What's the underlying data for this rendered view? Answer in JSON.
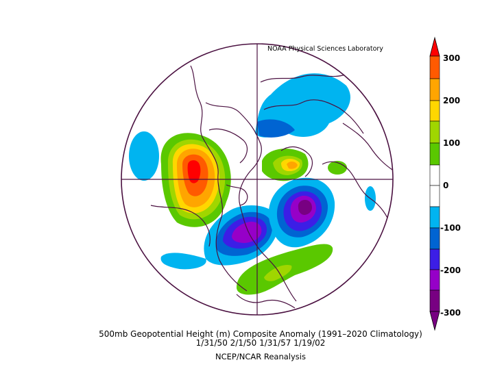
{
  "credit": "NOAA Physical Sciences Laboratory",
  "caption": {
    "line1": "500mb Geopotential Height (m) Composite Anomaly (1991–2020 Climatology)",
    "line2": "1/31/50 2/1/50 1/31/57 1/19/02",
    "line3": "NCEP/NCAR Reanalysis"
  },
  "colorbar": {
    "labels": [
      "300",
      "200",
      "100",
      "0",
      "-100",
      "-200",
      "-300"
    ],
    "colors": [
      "#ff0000",
      "#ff5a00",
      "#ffa500",
      "#ffd700",
      "#a0d600",
      "#5ac800",
      "#ffffff",
      "#ffffff",
      "#00b4f0",
      "#0064d2",
      "#3c1ee6",
      "#9600c8",
      "#780082"
    ]
  },
  "anomaly_palette": {
    "neg_300": "#780082",
    "neg_250": "#9600c8",
    "neg_200": "#3c1ee6",
    "neg_150": "#0064d2",
    "neg_100": "#00b4f0",
    "pos_100": "#5ac800",
    "pos_150": "#a0d600",
    "pos_200": "#ffd700",
    "pos_250": "#ffa500",
    "pos_300": "#ff5a00"
  }
}
